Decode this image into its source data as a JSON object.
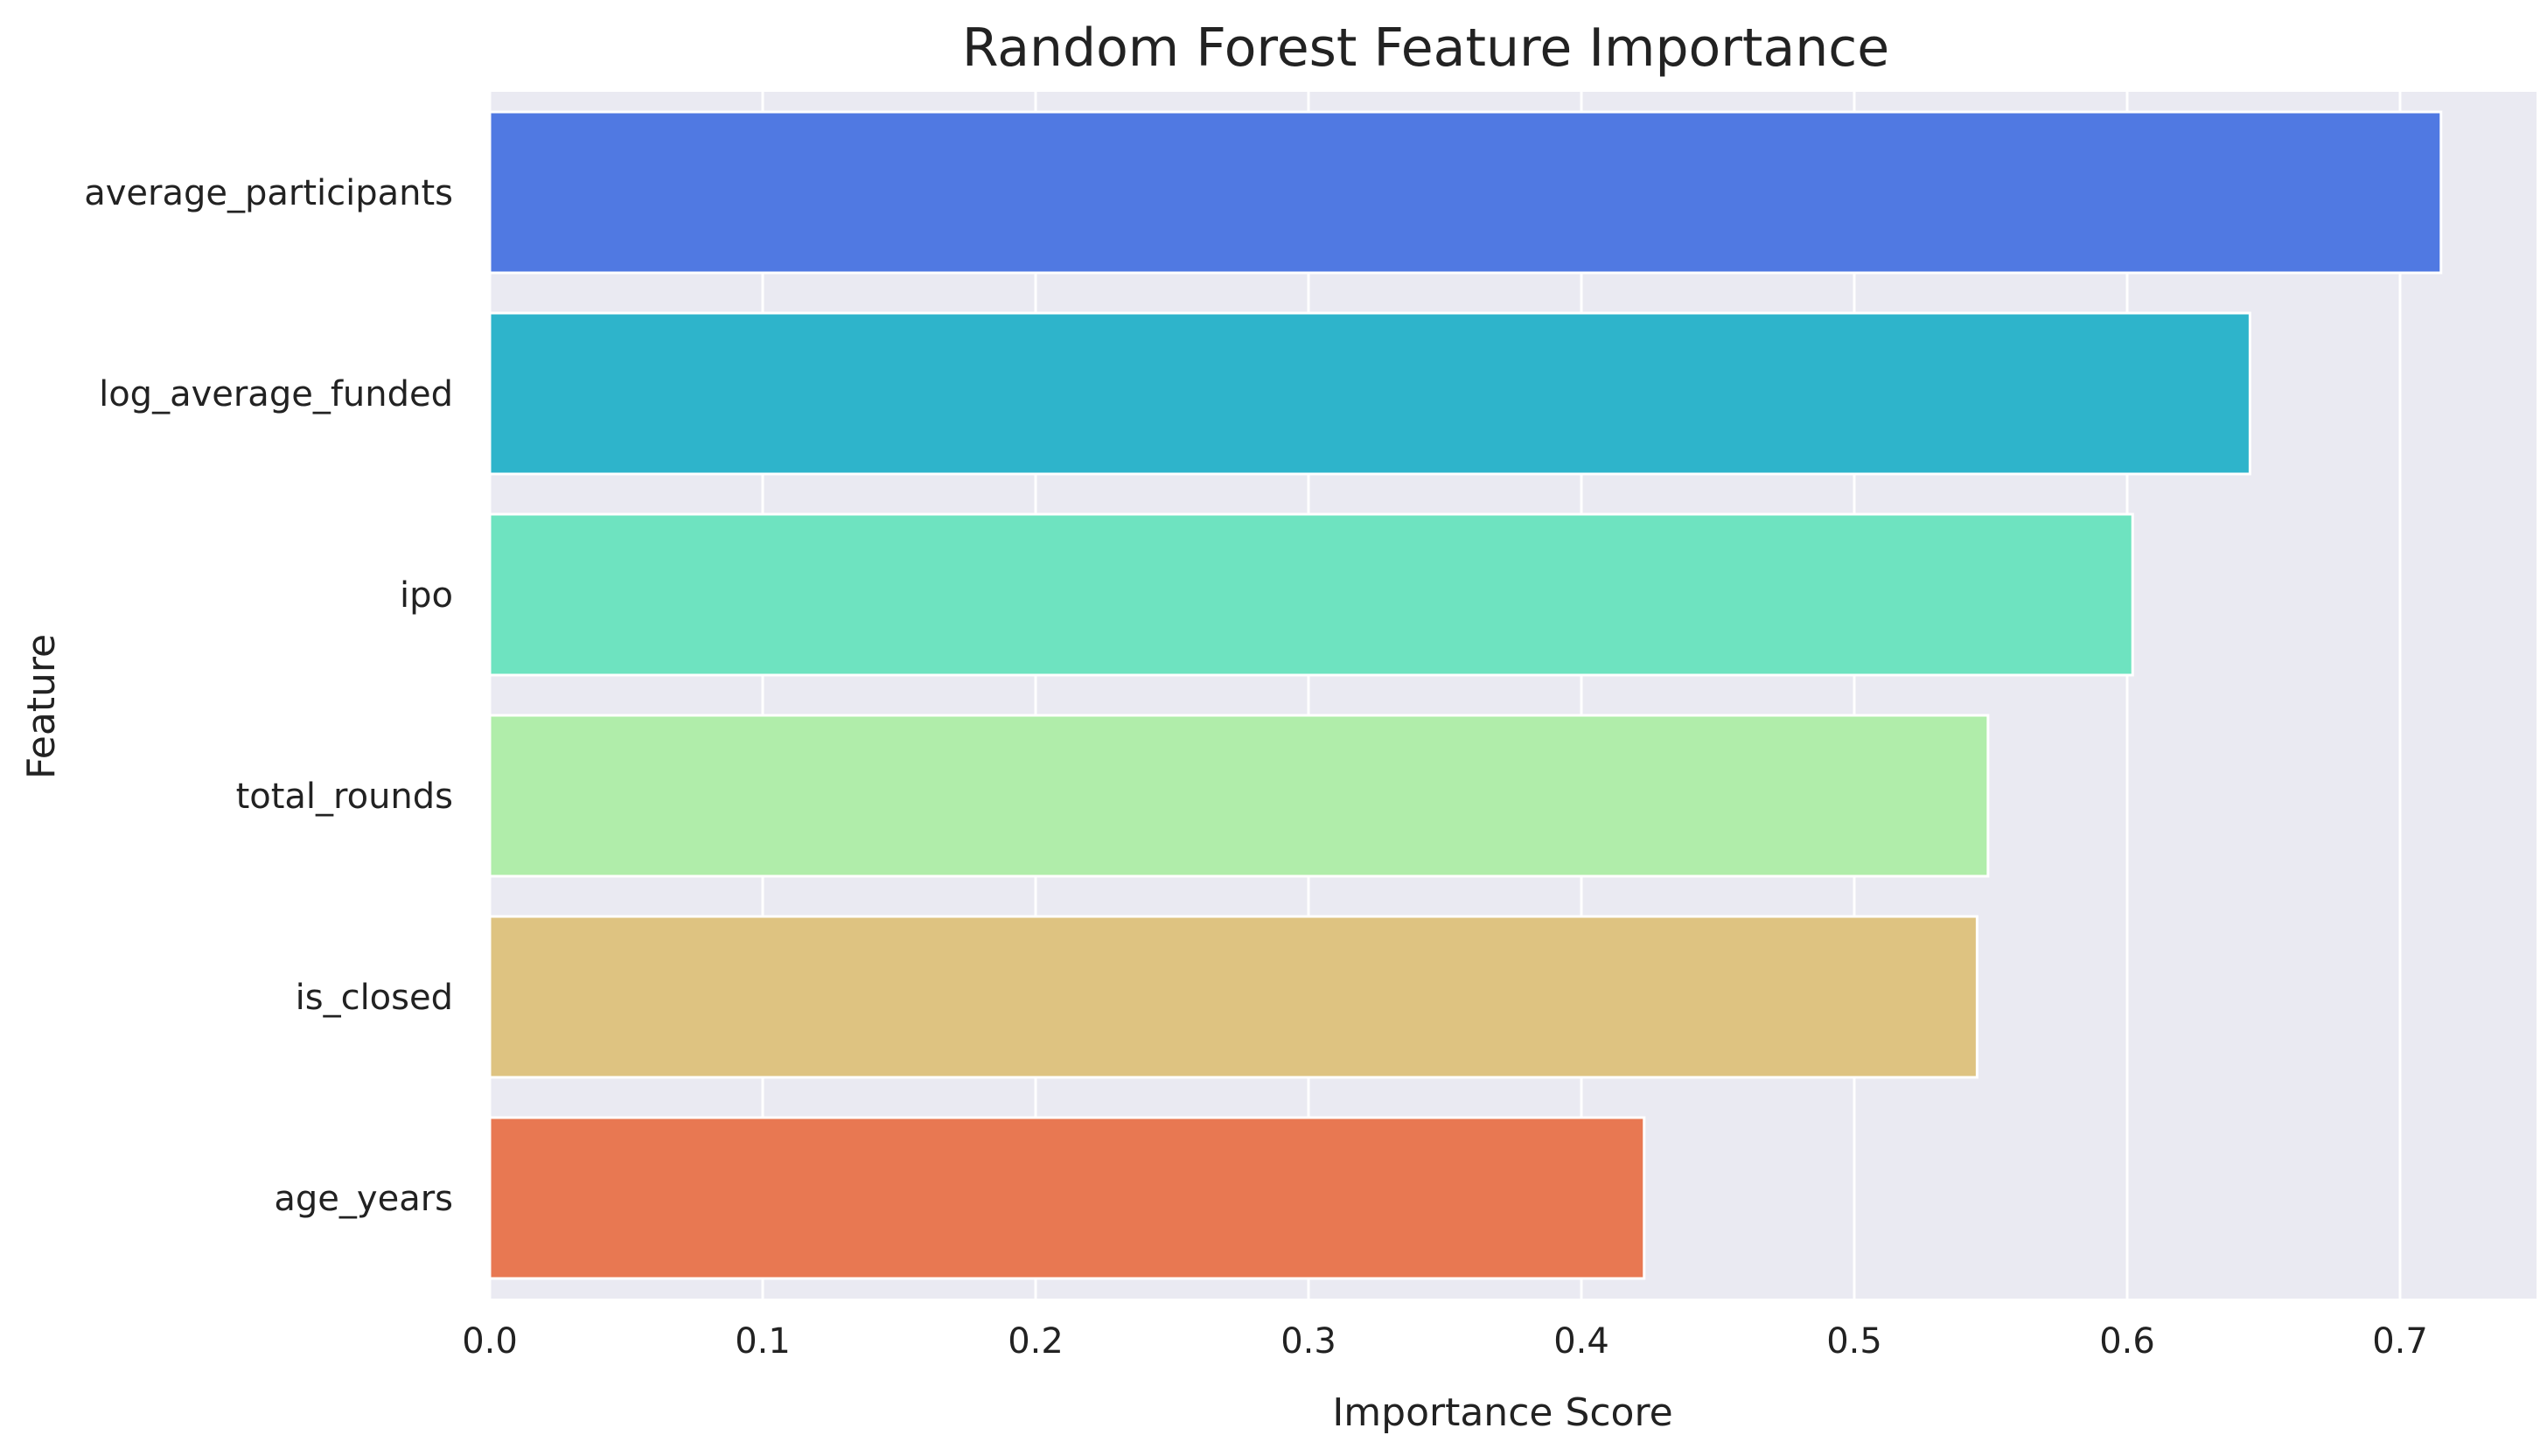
{
  "chart_data": {
    "type": "bar",
    "orientation": "horizontal",
    "title": "Random Forest Feature Importance",
    "xlabel": "Importance Score",
    "ylabel": "Feature",
    "categories": [
      "average_participants",
      "log_average_funded",
      "ipo",
      "total_rounds",
      "is_closed",
      "age_years"
    ],
    "values": [
      0.715,
      0.645,
      0.602,
      0.549,
      0.545,
      0.423
    ],
    "colors": [
      "#5079E2",
      "#2EB4CB",
      "#6EE3C0",
      "#B0EDAA",
      "#DEC381",
      "#E87852"
    ],
    "xlim": [
      0,
      0.75
    ],
    "xticks": [
      "0.0",
      "0.1",
      "0.2",
      "0.3",
      "0.4",
      "0.5",
      "0.6",
      "0.7"
    ],
    "grid": true,
    "background_color": "#EAEAF2",
    "legend": "none"
  }
}
